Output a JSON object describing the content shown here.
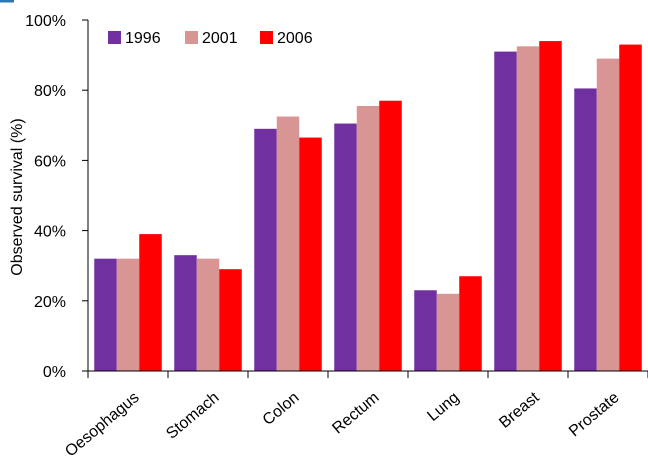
{
  "chart_data": {
    "type": "bar",
    "title": "",
    "xlabel": "",
    "ylabel": "Observed survival (%)",
    "ylim": [
      0,
      100
    ],
    "yticks": [
      "0%",
      "20%",
      "40%",
      "60%",
      "80%",
      "100%"
    ],
    "categories": [
      "Oesophagus",
      "Stomach",
      "Colon",
      "Rectum",
      "Lung",
      "Breast",
      "Prostate"
    ],
    "series": [
      {
        "name": "1996",
        "color": "#7030a0",
        "values": [
          32,
          33,
          69,
          70.5,
          23,
          91,
          80.5
        ]
      },
      {
        "name": "2001",
        "color": "#d99594",
        "values": [
          32,
          32,
          72.5,
          75.5,
          22,
          92.5,
          89
        ]
      },
      {
        "name": "2006",
        "color": "#ff0000",
        "values": [
          39,
          29,
          66.5,
          77,
          27,
          94,
          93
        ]
      }
    ],
    "legend_position": "top-left",
    "grid": false
  }
}
